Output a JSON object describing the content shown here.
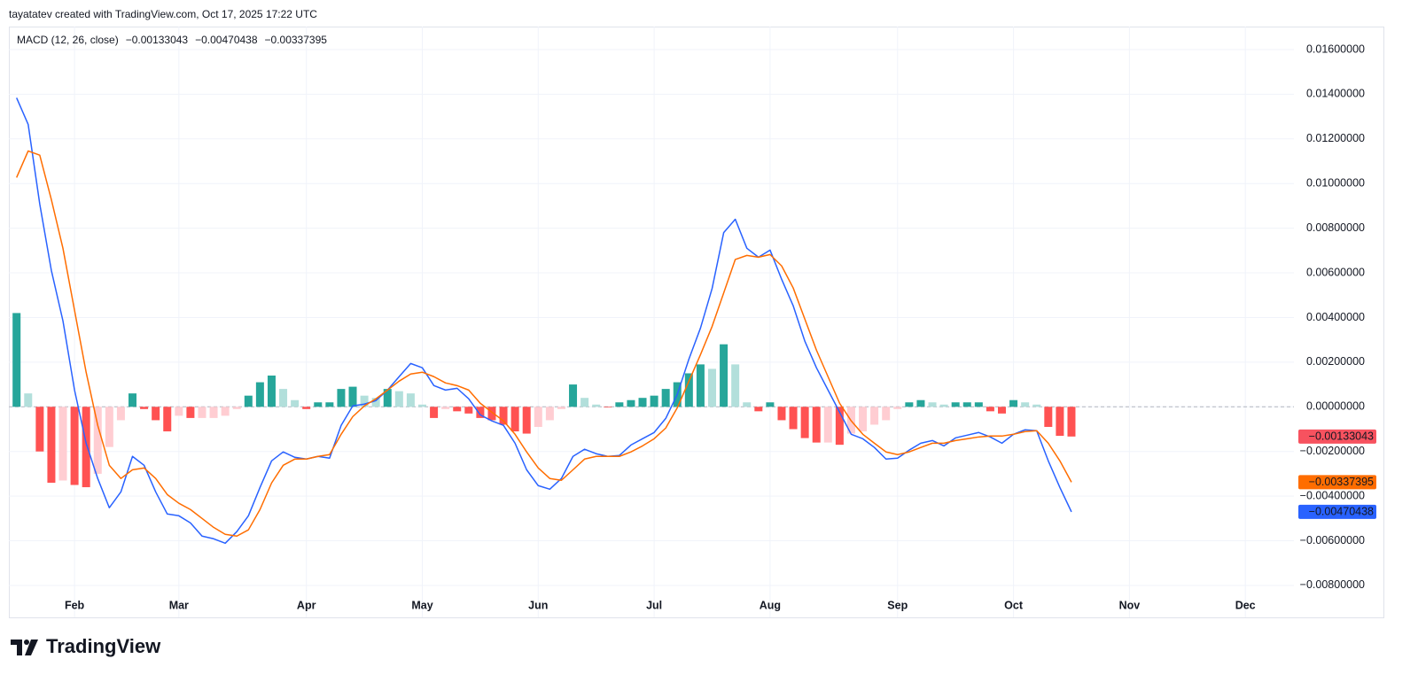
{
  "header": "tayatatev created with TradingView.com, Oct 17, 2025 17:22 UTC",
  "branding": "TradingView",
  "chart_data": {
    "type": "macd",
    "title": "MACD (12, 26, close)",
    "categories": [
      null,
      null,
      null,
      null,
      null,
      "Feb",
      null,
      null,
      null,
      null,
      null,
      null,
      null,
      null,
      "Mar",
      null,
      null,
      null,
      null,
      null,
      null,
      null,
      null,
      null,
      null,
      "Apr",
      null,
      null,
      null,
      null,
      null,
      null,
      null,
      null,
      null,
      "May",
      null,
      null,
      null,
      null,
      null,
      null,
      null,
      null,
      null,
      "Jun",
      null,
      null,
      null,
      null,
      null,
      null,
      null,
      null,
      null,
      "Jul",
      null,
      null,
      null,
      null,
      null,
      null,
      null,
      null,
      null,
      "Aug",
      null,
      null,
      null,
      null,
      null,
      null,
      null,
      null,
      null,
      null,
      "Sep",
      null,
      null,
      null,
      null,
      null,
      null,
      null,
      null,
      null,
      "Oct",
      null,
      null,
      null,
      null,
      null,
      null,
      null,
      null,
      null,
      "Nov",
      null,
      null,
      null,
      null,
      null,
      null,
      null,
      null,
      null,
      "Dec",
      null,
      null,
      null,
      null
    ],
    "ylim": [
      -0.00943,
      0.01703
    ],
    "yticks": [
      {
        "value": 0.016,
        "label": "0.01600000"
      },
      {
        "value": 0.014,
        "label": "0.01400000"
      },
      {
        "value": 0.012,
        "label": "0.01200000"
      },
      {
        "value": 0.01,
        "label": "0.01000000"
      },
      {
        "value": 0.008,
        "label": "0.00800000"
      },
      {
        "value": 0.006,
        "label": "0.00600000"
      },
      {
        "value": 0.004,
        "label": "0.00400000"
      },
      {
        "value": 0.002,
        "label": "0.00200000"
      },
      {
        "value": 0,
        "label": "0.00000000"
      },
      {
        "value": -0.002,
        "label": "−0.00200000"
      },
      {
        "value": -0.004,
        "label": "−0.00400000"
      },
      {
        "value": -0.006,
        "label": "−0.00600000"
      },
      {
        "value": -0.008,
        "label": "−0.00800000"
      }
    ],
    "grid": true,
    "zero_line": true,
    "series": [
      {
        "style": "histogram",
        "color": "#f7525f",
        "bar_colors": {
          "up_growing": "#26a69a",
          "up_falling": "#b2dfdb",
          "down_rising": "#ffcdd2",
          "down_falling": "#ff5252"
        },
        "last_label": "−0.00133043",
        "values": [
          0.0042,
          0.0006,
          -0.002,
          -0.0034,
          -0.0033,
          -0.0035,
          -0.0036,
          -0.003,
          -0.0018,
          -0.0006,
          0.0006,
          -0.0001,
          -0.0006,
          -0.0011,
          -0.0004,
          -0.0005,
          -0.0005,
          -0.0005,
          -0.0004,
          -0.0001,
          0.0005,
          0.0011,
          0.0014,
          0.0008,
          0.0003,
          -0.0001,
          0.0002,
          0.0002,
          0.0008,
          0.0009,
          0.0005,
          0.0004,
          0.0008,
          0.0007,
          0.0006,
          0.0001,
          -0.0005,
          -0.0001,
          -0.0002,
          -0.0003,
          -0.0005,
          -0.0006,
          -0.0008,
          -0.0011,
          -0.0012,
          -0.0009,
          -0.0006,
          -0.0001,
          0.001,
          0.0004,
          0.0001,
          -3e-05,
          0.0002,
          0.0003,
          0.0004,
          0.0005,
          0.0008,
          0.0011,
          0.0015,
          0.0019,
          0.0017,
          0.0028,
          0.0019,
          0.0002,
          -0.0002,
          0.0002,
          -0.0006,
          -0.001,
          -0.0014,
          -0.0016,
          -0.0016,
          -0.0017,
          -0.0012,
          -0.0011,
          -0.0008,
          -0.0006,
          -0.0001,
          0.0002,
          0.0003,
          0.0002,
          0.0001,
          0.0002,
          0.0002,
          0.0002,
          -0.0002,
          -0.0003,
          0.0003,
          0.0002,
          0.0001,
          -0.0009,
          -0.0013,
          -0.00133043,
          null,
          null,
          null,
          null,
          null,
          null,
          null,
          null,
          null,
          null,
          null,
          null,
          null,
          null,
          null,
          null,
          null,
          null,
          null
        ]
      },
      {
        "style": "line",
        "color": "#2962ff",
        "last_label": "−0.00470438",
        "values": [
          0.01384,
          0.01265,
          0.00908,
          0.00611,
          0.00385,
          0.00075,
          -0.00163,
          -0.00321,
          -0.00452,
          -0.00381,
          -0.00222,
          -0.00262,
          -0.00381,
          -0.0048,
          -0.00488,
          -0.0052,
          -0.00579,
          -0.00591,
          -0.00611,
          -0.00559,
          -0.00488,
          -0.00361,
          -0.00242,
          -0.00202,
          -0.00226,
          -0.00234,
          -0.00222,
          -0.0023,
          -0.00083,
          4e-05,
          0.00012,
          0.00028,
          0.00075,
          0.00135,
          0.00194,
          0.00175,
          0.00095,
          0.00075,
          0.00083,
          0.00036,
          -0.00036,
          -0.00063,
          -0.00083,
          -0.00163,
          -0.00282,
          -0.00353,
          -0.00369,
          -0.00321,
          -0.00222,
          -0.0019,
          -0.0021,
          -0.00222,
          -0.00218,
          -0.00171,
          -0.00143,
          -0.00115,
          -0.00052,
          0.00056,
          0.00214,
          0.00353,
          0.0053,
          0.0078,
          0.0084,
          0.0071,
          0.0067,
          0.00702,
          0.00571,
          0.00452,
          0.00294,
          0.00175,
          0.00075,
          -0.00024,
          -0.00123,
          -0.00143,
          -0.00182,
          -0.00234,
          -0.0023,
          -0.00194,
          -0.00163,
          -0.00151,
          -0.00175,
          -0.00139,
          -0.00127,
          -0.00115,
          -0.00135,
          -0.00163,
          -0.00123,
          -0.00103,
          -0.00107,
          -0.00242,
          -0.00361,
          -0.00470438,
          null,
          null,
          null,
          null,
          null,
          null,
          null,
          null,
          null,
          null,
          null,
          null,
          null,
          null,
          null,
          null,
          null,
          null,
          null
        ]
      },
      {
        "style": "line",
        "color": "#ff6d00",
        "last_label": "−0.00337395",
        "values": [
          0.01027,
          0.01146,
          0.01127,
          0.00928,
          0.0071,
          0.00432,
          0.00155,
          -0.00083,
          -0.00262,
          -0.00321,
          -0.00282,
          -0.00274,
          -0.00321,
          -0.00393,
          -0.00432,
          -0.0046,
          -0.005,
          -0.0054,
          -0.00571,
          -0.00579,
          -0.00551,
          -0.0046,
          -0.00341,
          -0.00262,
          -0.00234,
          -0.00234,
          -0.00222,
          -0.00214,
          -0.00123,
          -0.00044,
          4e-05,
          0.00036,
          0.00075,
          0.00115,
          0.00147,
          0.00155,
          0.00135,
          0.00107,
          0.00095,
          0.00075,
          0.00016,
          -0.00024,
          -0.00063,
          -0.00123,
          -0.00202,
          -0.00274,
          -0.00321,
          -0.00329,
          -0.00282,
          -0.00234,
          -0.00222,
          -0.00222,
          -0.00222,
          -0.00202,
          -0.00175,
          -0.00143,
          -0.00095,
          -4e-05,
          0.00115,
          0.00234,
          0.0036,
          0.0051,
          0.0066,
          0.00678,
          0.0067,
          0.00682,
          0.00631,
          0.00532,
          0.00393,
          0.00254,
          0.00135,
          0.00016,
          -0.00063,
          -0.00123,
          -0.00163,
          -0.00202,
          -0.00214,
          -0.00202,
          -0.00182,
          -0.00163,
          -0.00163,
          -0.00151,
          -0.00143,
          -0.00135,
          -0.00131,
          -0.00131,
          -0.00123,
          -0.00111,
          -0.00107,
          -0.00163,
          -0.00242,
          -0.00337395,
          null,
          null,
          null,
          null,
          null,
          null,
          null,
          null,
          null,
          null,
          null,
          null,
          null,
          null,
          null,
          null,
          null,
          null,
          null
        ]
      }
    ]
  }
}
